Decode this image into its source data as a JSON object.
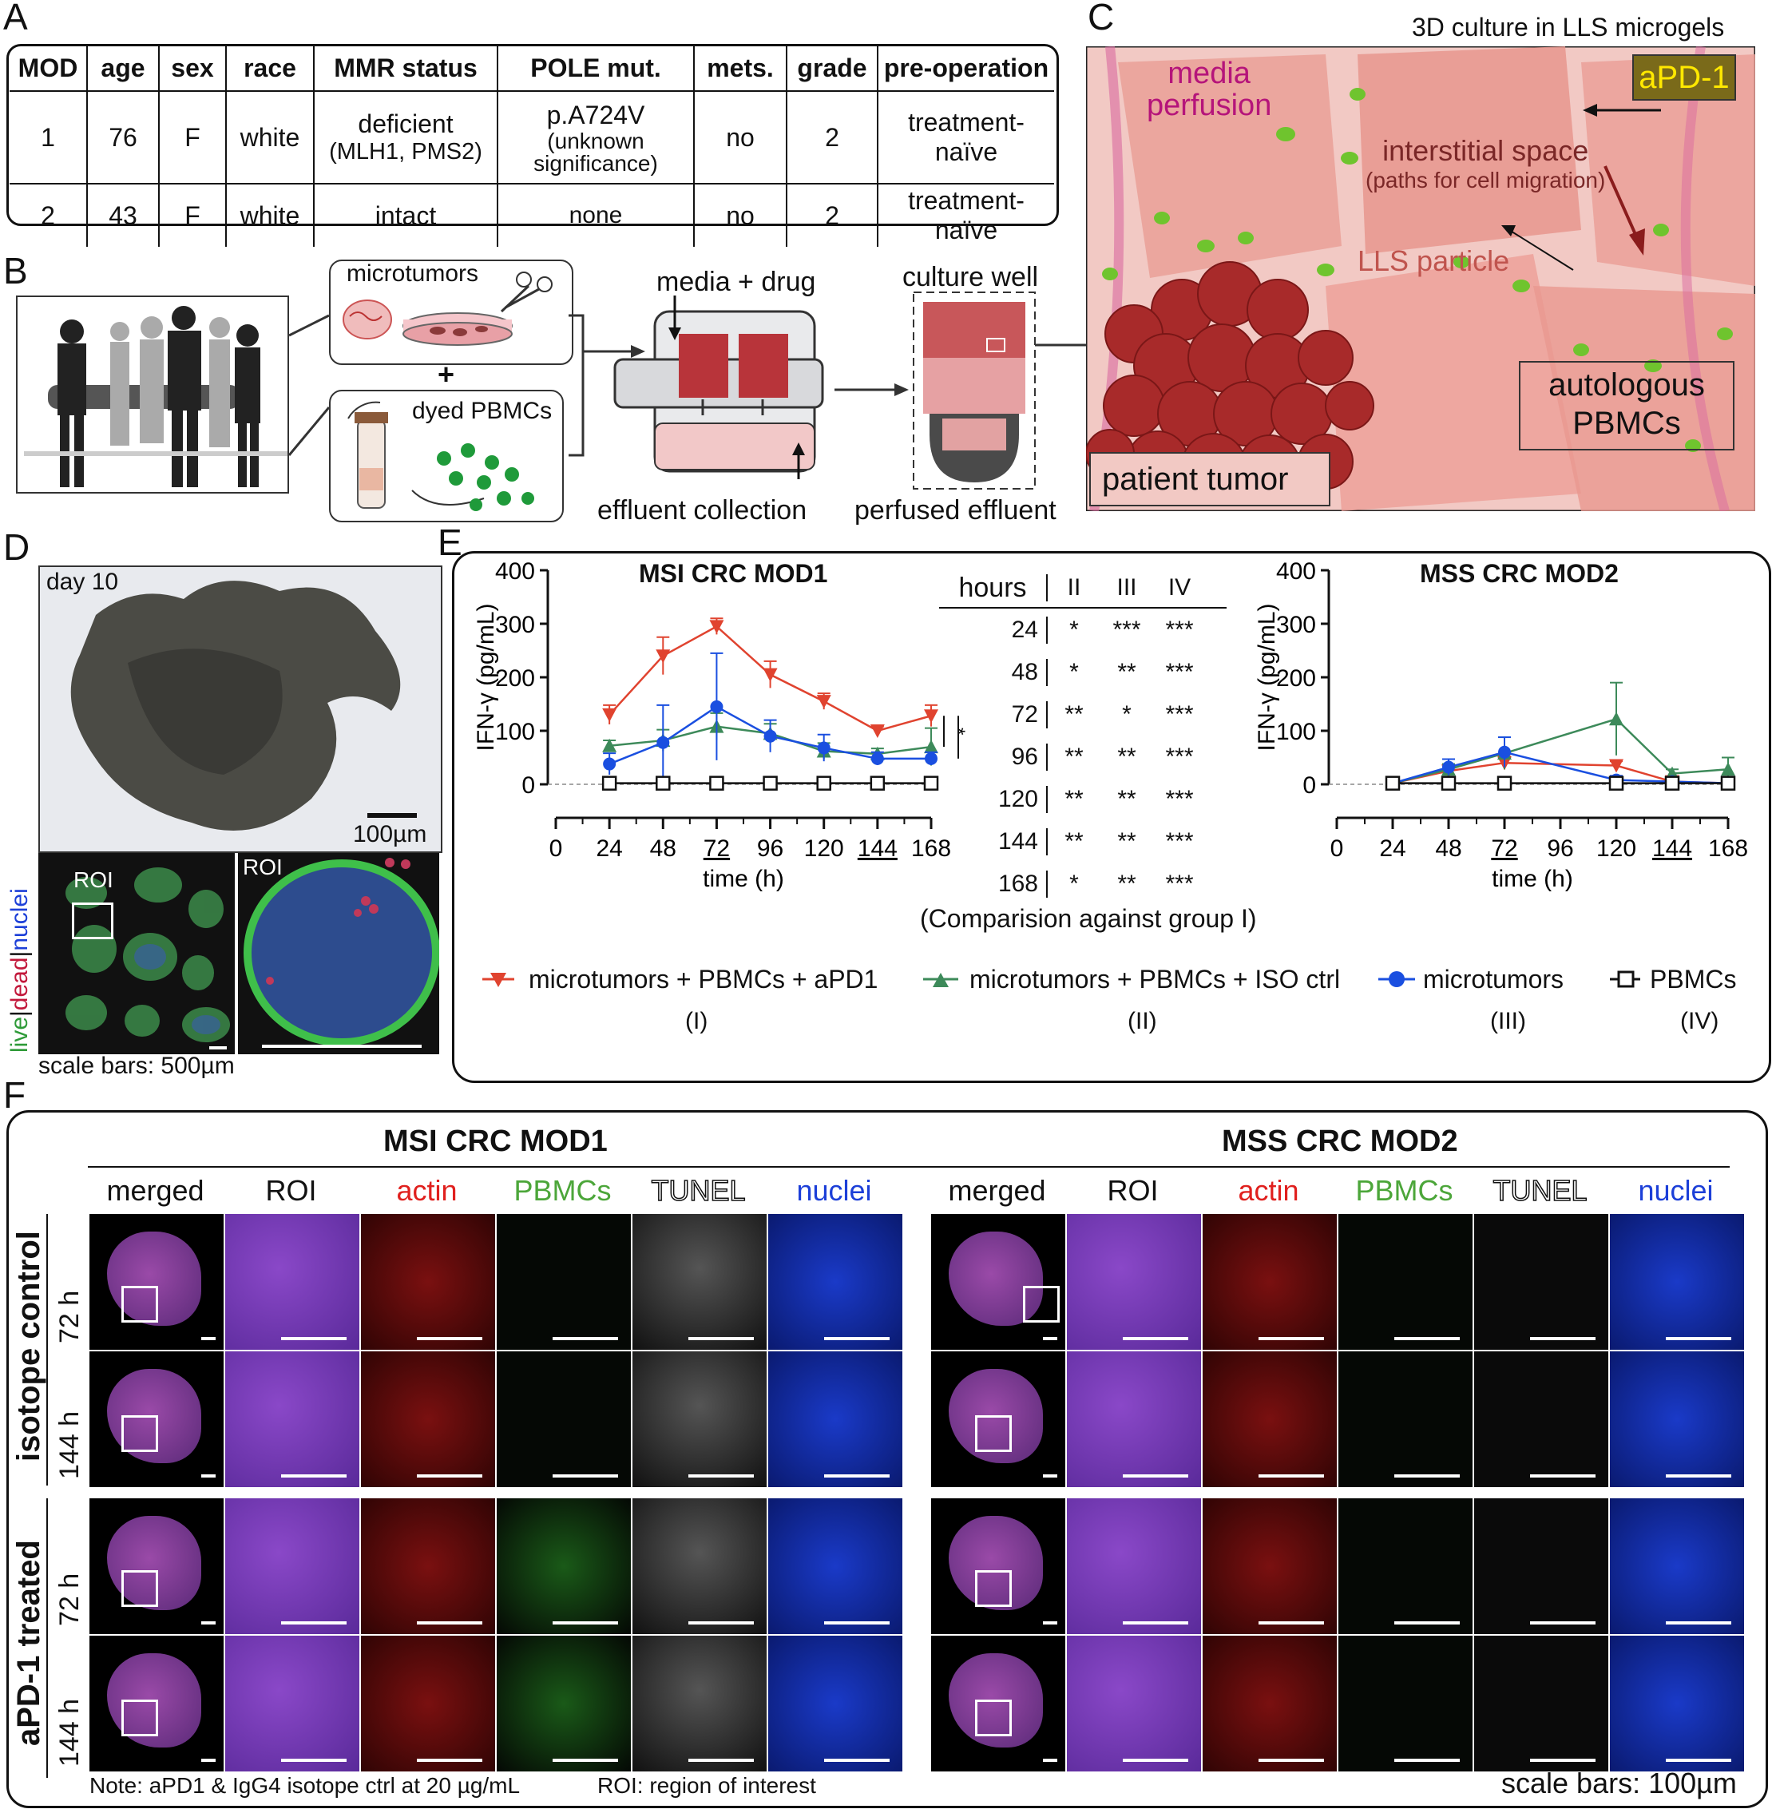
{
  "panels": {
    "a": "A",
    "b": "B",
    "c": "C",
    "d": "D",
    "e": "E",
    "f": "F"
  },
  "table": {
    "headers": [
      "MOD",
      "age",
      "sex",
      "race",
      "MMR status",
      "POLE mut.",
      "mets.",
      "grade",
      "pre-operation"
    ],
    "rows": [
      {
        "mod": "1",
        "age": "76",
        "sex": "F",
        "race": "white",
        "mmr_line1": "deficient",
        "mmr_line2": "(MLH1, PMS2)",
        "pole_line1": "p.A724V",
        "pole_line2": "(unknown",
        "pole_line3": "significance)",
        "mets": "no",
        "grade": "2",
        "preop": "treatment-naïve"
      },
      {
        "mod": "2",
        "age": "43",
        "sex": "F",
        "race": "white",
        "mmr": "intact",
        "pole": "none",
        "mets": "no",
        "grade": "2",
        "preop": "treatment-naïve"
      }
    ]
  },
  "workflow": {
    "microtumors": "microtumors",
    "plus": "+",
    "dyed_pbmcs": "dyed PBMCs",
    "media_drug": "media + drug",
    "effluent_collection": "effluent collection",
    "culture_well": "culture well",
    "perfused_effluent": "perfused effluent"
  },
  "culture3d": {
    "title": "3D culture in LLS microgels",
    "apd1": "aPD-1",
    "media_line1": "media",
    "media_line2": "perfusion",
    "interstitial_line1": "interstitial space",
    "interstitial_line2": "(paths for cell migration)",
    "lls_particle": "LLS particle",
    "autologous_line1": "autologous",
    "autologous_line2": "PBMCs",
    "patient_tumor": "patient tumor"
  },
  "panel_d": {
    "day": "day 10",
    "scale100": "100µm",
    "roi": "ROI",
    "roi2": "ROI",
    "stain_live": "live",
    "stain_sep1": "|",
    "stain_dead": "dead",
    "stain_sep2": "|",
    "stain_nuclei": "nuclei",
    "scalebars": "scale bars: 500µm"
  },
  "colors": {
    "aPD1": "#e0432f",
    "iso": "#3d8a5a",
    "micro": "#1a4fe0",
    "pbmc": "#111111",
    "actin": "#e0201e",
    "pbmcs_label": "#4ca63a",
    "nuclei_label": "#1c3fd8"
  },
  "chart_data": [
    {
      "type": "line",
      "title": "MSI CRC MOD1",
      "xlabel": "time (h)",
      "ylabel": "IFN-γ (pg/mL)",
      "x": [
        24,
        48,
        72,
        96,
        120,
        144,
        168
      ],
      "x_ticks": [
        "0",
        "24",
        "48",
        "72",
        "96",
        "120",
        "144",
        "168"
      ],
      "y_ticks": [
        "0",
        "100",
        "200",
        "300",
        "400"
      ],
      "xlim": [
        0,
        168
      ],
      "ylim": [
        0,
        400
      ],
      "series": [
        {
          "name": "microtumors + PBMCs + aPD1",
          "values": [
            130,
            240,
            295,
            205,
            155,
            100,
            128
          ],
          "err": [
            18,
            35,
            15,
            25,
            15,
            8,
            20
          ]
        },
        {
          "name": "microtumors + PBMCs + ISO ctrl",
          "values": [
            72,
            82,
            108,
            95,
            62,
            57,
            70
          ],
          "err": [
            10,
            20,
            25,
            18,
            15,
            10,
            35
          ]
        },
        {
          "name": "microtumors",
          "values": [
            38,
            78,
            145,
            90,
            68,
            48,
            48
          ],
          "err": [
            20,
            70,
            100,
            30,
            25,
            12,
            12
          ]
        },
        {
          "name": "PBMCs",
          "values": [
            2,
            2,
            2,
            2,
            2,
            2,
            2
          ],
          "err": [
            0,
            0,
            0,
            0,
            0,
            0,
            0
          ]
        }
      ],
      "significance": [
        "*",
        "**",
        "***"
      ]
    },
    {
      "type": "line",
      "title": "MSS CRC MOD2",
      "xlabel": "time (h)",
      "ylabel": "IFN-γ (pg/mL)",
      "x": [
        24,
        48,
        72,
        120,
        144,
        168
      ],
      "x_ticks": [
        "0",
        "24",
        "48",
        "72",
        "96",
        "120",
        "144",
        "168"
      ],
      "y_ticks": [
        "0",
        "100",
        "200",
        "300",
        "400"
      ],
      "xlim": [
        0,
        168
      ],
      "ylim": [
        0,
        400
      ],
      "series": [
        {
          "name": "microtumors + PBMCs + aPD1",
          "values": [
            2,
            25,
            40,
            35,
            5,
            2
          ],
          "err": [
            0,
            8,
            12,
            8,
            3,
            0
          ]
        },
        {
          "name": "microtumors + PBMCs + ISO ctrl",
          "values": [
            2,
            28,
            58,
            122,
            20,
            28
          ],
          "err": [
            0,
            10,
            30,
            68,
            8,
            22
          ]
        },
        {
          "name": "microtumors",
          "values": [
            2,
            32,
            60,
            8,
            5,
            2
          ],
          "err": [
            0,
            15,
            28,
            8,
            3,
            0
          ]
        },
        {
          "name": "PBMCs",
          "values": [
            2,
            2,
            2,
            2,
            2,
            2
          ],
          "err": [
            0,
            0,
            0,
            0,
            0,
            0
          ]
        }
      ]
    }
  ],
  "stats_table": {
    "header": [
      "hours",
      "II",
      "III",
      "IV"
    ],
    "rows": [
      [
        "24",
        "*",
        "***",
        "***"
      ],
      [
        "48",
        "*",
        "**",
        "***"
      ],
      [
        "72",
        "**",
        "*",
        "***"
      ],
      [
        "96",
        "**",
        "**",
        "***"
      ],
      [
        "120",
        "**",
        "**",
        "***"
      ],
      [
        "144",
        "**",
        "**",
        "***"
      ],
      [
        "168",
        "*",
        "**",
        "***"
      ]
    ],
    "caption": "(Comparision against group I)"
  },
  "legend": [
    {
      "label": "microtumors + PBMCs + aPD1",
      "group": "(I)"
    },
    {
      "label": "microtumors + PBMCs + ISO ctrl",
      "group": "(II)"
    },
    {
      "label": "microtumors",
      "group": "(III)"
    },
    {
      "label": "PBMCs",
      "group": "(IV)"
    }
  ],
  "panel_f": {
    "mod1_title": "MSI CRC MOD1",
    "mod2_title": "MSS CRC MOD2",
    "columns": [
      "merged",
      "ROI",
      "actin",
      "PBMCs",
      "TUNEL",
      "nuclei"
    ],
    "group1": "isotope control",
    "group2": "aPD-1 treated",
    "t72": "72 h",
    "t144": "144 h",
    "note": "Note: aPD1 & IgG4 isotope ctrl at 20 µg/mL",
    "roi_note": "ROI: region of interest",
    "scalebars": "scale bars: 100µm"
  }
}
